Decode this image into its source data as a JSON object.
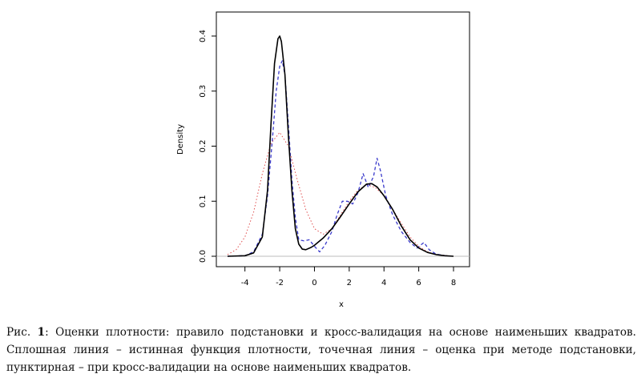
{
  "chart_data": {
    "type": "line",
    "xlabel": "x",
    "ylabel": "Density",
    "xlim": [
      -5,
      8
    ],
    "ylim": [
      0,
      0.4
    ],
    "xticks": [
      -4,
      -2,
      0,
      2,
      4,
      6,
      8
    ],
    "yticks": [
      0.0,
      0.1,
      0.2,
      0.3,
      0.4
    ],
    "xtick_labels": [
      "-4",
      "-2",
      "0",
      "2",
      "4",
      "6",
      "8"
    ],
    "ytick_labels": [
      "0.0",
      "0.1",
      "0.2",
      "0.3",
      "0.4"
    ],
    "grid": false,
    "legend": "none",
    "series": [
      {
        "style": "solid",
        "color": "#000000",
        "points": [
          [
            -5,
            0
          ],
          [
            -4,
            0.001
          ],
          [
            -3.5,
            0.006
          ],
          [
            -3,
            0.035
          ],
          [
            -2.7,
            0.12
          ],
          [
            -2.5,
            0.24
          ],
          [
            -2.3,
            0.35
          ],
          [
            -2.1,
            0.395
          ],
          [
            -2,
            0.4
          ],
          [
            -1.9,
            0.39
          ],
          [
            -1.7,
            0.33
          ],
          [
            -1.5,
            0.22
          ],
          [
            -1.3,
            0.12
          ],
          [
            -1.1,
            0.05
          ],
          [
            -0.9,
            0.022
          ],
          [
            -0.7,
            0.013
          ],
          [
            -0.5,
            0.012
          ],
          [
            -0.2,
            0.016
          ],
          [
            0,
            0.02
          ],
          [
            0.5,
            0.033
          ],
          [
            1,
            0.05
          ],
          [
            1.5,
            0.072
          ],
          [
            2,
            0.095
          ],
          [
            2.5,
            0.117
          ],
          [
            3,
            0.131
          ],
          [
            3.3,
            0.132
          ],
          [
            3.6,
            0.126
          ],
          [
            4,
            0.11
          ],
          [
            4.5,
            0.085
          ],
          [
            5,
            0.055
          ],
          [
            5.5,
            0.03
          ],
          [
            6,
            0.015
          ],
          [
            6.5,
            0.007
          ],
          [
            7,
            0.003
          ],
          [
            7.5,
            0.001
          ],
          [
            8,
            0
          ]
        ]
      },
      {
        "style": "dotted",
        "color": "#e05050",
        "points": [
          [
            -5,
            0.003
          ],
          [
            -4.5,
            0.012
          ],
          [
            -4,
            0.035
          ],
          [
            -3.5,
            0.08
          ],
          [
            -3,
            0.15
          ],
          [
            -2.5,
            0.205
          ],
          [
            -2,
            0.225
          ],
          [
            -1.5,
            0.2
          ],
          [
            -1,
            0.14
          ],
          [
            -0.5,
            0.085
          ],
          [
            0,
            0.05
          ],
          [
            0.5,
            0.04
          ],
          [
            1,
            0.05
          ],
          [
            1.5,
            0.075
          ],
          [
            2,
            0.1
          ],
          [
            2.5,
            0.12
          ],
          [
            3,
            0.13
          ],
          [
            3.5,
            0.125
          ],
          [
            4,
            0.11
          ],
          [
            4.5,
            0.085
          ],
          [
            5,
            0.06
          ],
          [
            5.5,
            0.035
          ],
          [
            6,
            0.018
          ],
          [
            6.5,
            0.008
          ],
          [
            7,
            0.003
          ],
          [
            8,
            0
          ]
        ]
      },
      {
        "style": "dashed",
        "color": "#3a3acb",
        "points": [
          [
            -5,
            0
          ],
          [
            -4,
            0.001
          ],
          [
            -3.5,
            0.008
          ],
          [
            -3,
            0.04
          ],
          [
            -2.7,
            0.11
          ],
          [
            -2.4,
            0.22
          ],
          [
            -2.2,
            0.3
          ],
          [
            -2,
            0.345
          ],
          [
            -1.85,
            0.355
          ],
          [
            -1.7,
            0.33
          ],
          [
            -1.5,
            0.24
          ],
          [
            -1.3,
            0.14
          ],
          [
            -1.1,
            0.07
          ],
          [
            -0.9,
            0.03
          ],
          [
            -0.6,
            0.028
          ],
          [
            -0.3,
            0.03
          ],
          [
            0,
            0.018
          ],
          [
            0.3,
            0.008
          ],
          [
            0.6,
            0.02
          ],
          [
            1,
            0.045
          ],
          [
            1.3,
            0.075
          ],
          [
            1.6,
            0.1
          ],
          [
            1.9,
            0.1
          ],
          [
            2.2,
            0.095
          ],
          [
            2.5,
            0.115
          ],
          [
            2.8,
            0.15
          ],
          [
            3.1,
            0.125
          ],
          [
            3.4,
            0.145
          ],
          [
            3.6,
            0.178
          ],
          [
            3.8,
            0.155
          ],
          [
            4.1,
            0.11
          ],
          [
            4.5,
            0.075
          ],
          [
            5,
            0.045
          ],
          [
            5.5,
            0.025
          ],
          [
            5.9,
            0.015
          ],
          [
            6.3,
            0.025
          ],
          [
            6.6,
            0.012
          ],
          [
            7,
            0.004
          ],
          [
            7.5,
            0.001
          ],
          [
            8,
            0
          ]
        ]
      }
    ]
  },
  "caption": {
    "prefix": "Рис.",
    "number": "1",
    "text": ": Оценки плотности: правило подстановки и кросс-валидация на основе наименьших квадратов. Сплошная линия – истинная функция плотности, точечная линия – оценка при методе подстановки, пунктирная – при кросс-валидации на основе наименьших квадратов."
  }
}
